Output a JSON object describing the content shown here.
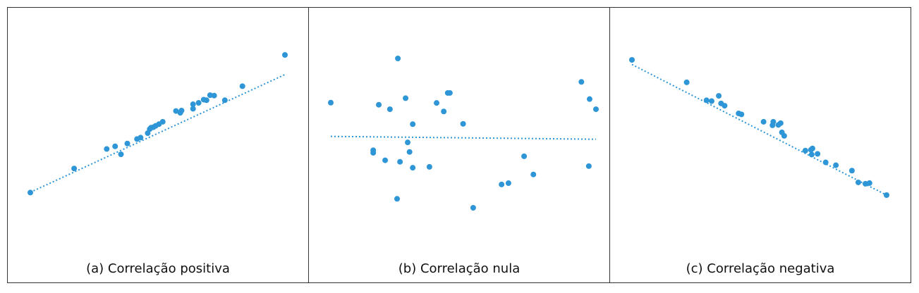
{
  "accent_color": "#2e96d6",
  "chart_data": [
    {
      "type": "scatter",
      "title": "(a) Correlação positiva",
      "trendline": {
        "style": "dotted",
        "x": [
          0.0,
          1.0
        ],
        "y": [
          0.02,
          0.86
        ]
      },
      "xlim": [
        0,
        1
      ],
      "ylim": [
        0,
        1
      ],
      "x": [
        0.0,
        0.172,
        0.3,
        0.333,
        0.356,
        0.381,
        0.419,
        0.433,
        0.461,
        0.469,
        0.474,
        0.483,
        0.492,
        0.505,
        0.52,
        0.572,
        0.589,
        0.594,
        0.639,
        0.639,
        0.661,
        0.681,
        0.692,
        0.706,
        0.722,
        0.764,
        0.833,
        1.0
      ],
      "y": [
        0.018,
        0.19,
        0.329,
        0.348,
        0.291,
        0.368,
        0.4,
        0.41,
        0.442,
        0.471,
        0.481,
        0.484,
        0.494,
        0.506,
        0.523,
        0.6,
        0.587,
        0.603,
        0.616,
        0.648,
        0.658,
        0.681,
        0.677,
        0.713,
        0.71,
        0.677,
        0.777,
        1.0
      ]
    },
    {
      "type": "scatter",
      "title": "(b) Correlação nula",
      "trendline": {
        "style": "dotted",
        "x": [
          0.0,
          1.0
        ],
        "y": [
          0.478,
          0.459
        ]
      },
      "xlim": [
        0,
        1
      ],
      "ylim": [
        0,
        1
      ],
      "x": [
        0.0,
        0.16,
        0.16,
        0.181,
        0.205,
        0.223,
        0.25,
        0.253,
        0.261,
        0.282,
        0.29,
        0.297,
        0.309,
        0.309,
        0.372,
        0.399,
        0.426,
        0.441,
        0.449,
        0.499,
        0.537,
        0.644,
        0.67,
        0.729,
        0.764,
        0.945,
        0.973,
        0.976,
        1.0
      ],
      "y": [
        0.704,
        0.368,
        0.385,
        0.69,
        0.318,
        0.66,
        0.06,
        1.0,
        0.308,
        0.734,
        0.438,
        0.374,
        0.56,
        0.268,
        0.274,
        0.702,
        0.645,
        0.769,
        0.769,
        0.562,
        0.0,
        0.156,
        0.165,
        0.345,
        0.223,
        0.843,
        0.279,
        0.728,
        0.66
      ]
    },
    {
      "type": "scatter",
      "title": "(c) Correlação negativa",
      "trendline": {
        "style": "dotted",
        "x": [
          0.0,
          1.0
        ],
        "y": [
          0.966,
          0.0
        ]
      },
      "xlim": [
        0,
        1
      ],
      "ylim": [
        0,
        1
      ],
      "x": [
        0.0,
        0.215,
        0.293,
        0.313,
        0.341,
        0.35,
        0.364,
        0.419,
        0.43,
        0.517,
        0.552,
        0.555,
        0.575,
        0.584,
        0.589,
        0.598,
        0.681,
        0.703,
        0.706,
        0.709,
        0.729,
        0.761,
        0.801,
        0.864,
        0.889,
        0.917,
        0.933,
        1.0
      ],
      "y": [
        1.0,
        0.834,
        0.701,
        0.695,
        0.734,
        0.678,
        0.661,
        0.604,
        0.597,
        0.542,
        0.516,
        0.542,
        0.519,
        0.532,
        0.464,
        0.438,
        0.329,
        0.335,
        0.3,
        0.345,
        0.305,
        0.242,
        0.221,
        0.181,
        0.094,
        0.084,
        0.089,
        0.0
      ]
    }
  ]
}
